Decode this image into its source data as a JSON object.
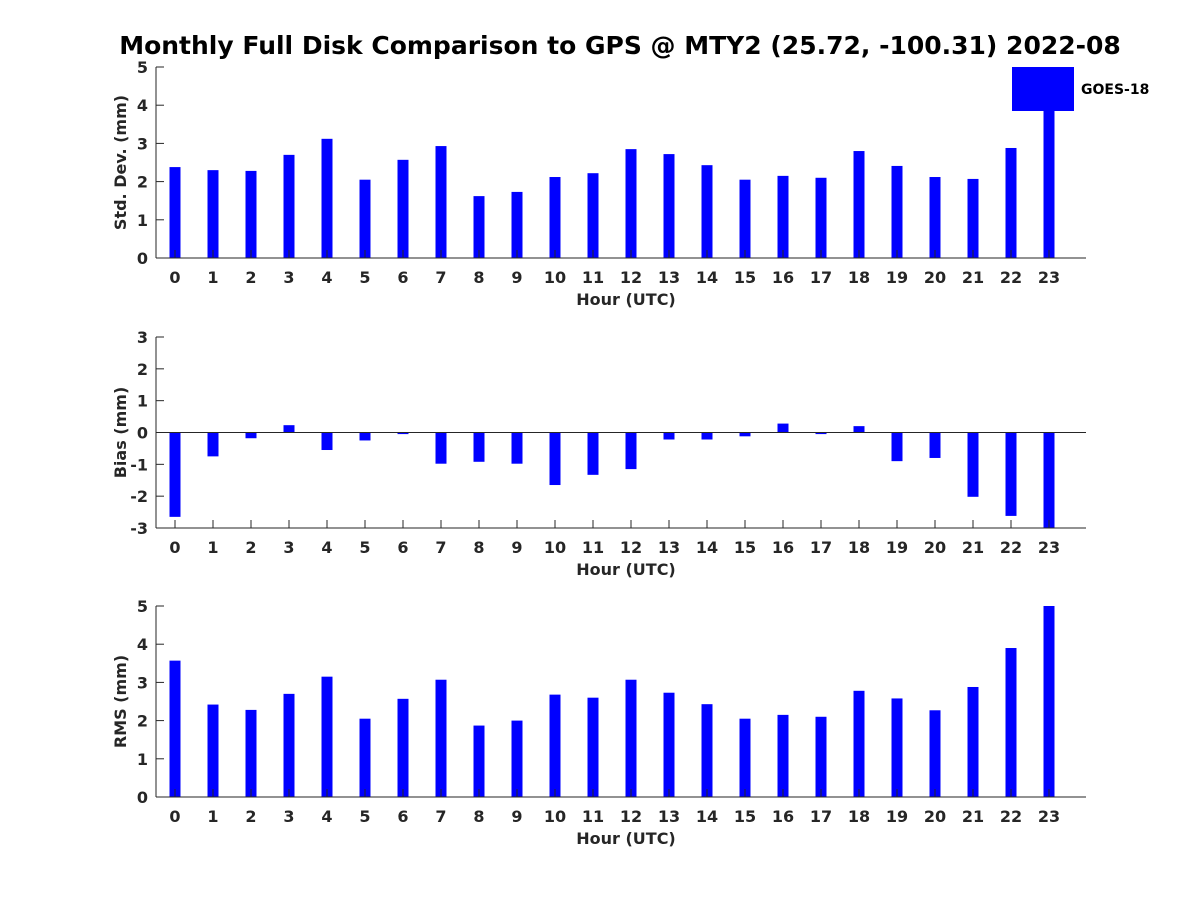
{
  "title": "Monthly Full Disk Comparison to GPS @ MTY2 (25.72, -100.31) 2022-08",
  "legend": {
    "label": "GOES-18",
    "color": "#0000ff",
    "placement": "top-right"
  },
  "chart_data": [
    {
      "type": "bar",
      "ylabel": "Std. Dev. (mm)",
      "xlabel": "Hour (UTC)",
      "ylim": [
        0,
        5
      ],
      "yticks": [
        "0",
        "1",
        "2",
        "3",
        "4",
        "5"
      ],
      "categories": [
        "0",
        "1",
        "2",
        "3",
        "4",
        "5",
        "6",
        "7",
        "8",
        "9",
        "10",
        "11",
        "12",
        "13",
        "14",
        "15",
        "16",
        "17",
        "18",
        "19",
        "20",
        "21",
        "22",
        "23"
      ],
      "series": [
        {
          "name": "GOES-18",
          "values": [
            2.38,
            2.3,
            2.28,
            2.7,
            3.12,
            2.05,
            2.57,
            2.93,
            1.62,
            1.73,
            2.12,
            2.22,
            2.85,
            2.72,
            2.43,
            2.05,
            2.15,
            2.1,
            2.8,
            2.41,
            2.12,
            2.07,
            2.88,
            3.85
          ]
        }
      ]
    },
    {
      "type": "bar",
      "ylabel": "Bias (mm)",
      "xlabel": "Hour (UTC)",
      "ylim": [
        -3,
        3
      ],
      "yticks": [
        "-3",
        "-2",
        "-1",
        "0",
        "1",
        "2",
        "3"
      ],
      "categories": [
        "0",
        "1",
        "2",
        "3",
        "4",
        "5",
        "6",
        "7",
        "8",
        "9",
        "10",
        "11",
        "12",
        "13",
        "14",
        "15",
        "16",
        "17",
        "18",
        "19",
        "20",
        "21",
        "22",
        "23"
      ],
      "series": [
        {
          "name": "GOES-18",
          "values": [
            -2.65,
            -0.75,
            -0.18,
            0.23,
            -0.55,
            -0.25,
            -0.05,
            -0.98,
            -0.92,
            -0.98,
            -1.65,
            -1.33,
            -1.15,
            -0.22,
            -0.22,
            -0.12,
            0.28,
            -0.05,
            0.2,
            -0.9,
            -0.8,
            -2.02,
            -2.62,
            -3.0
          ]
        }
      ]
    },
    {
      "type": "bar",
      "ylabel": "RMS (mm)",
      "xlabel": "Hour (UTC)",
      "ylim": [
        0,
        5
      ],
      "yticks": [
        "0",
        "1",
        "2",
        "3",
        "4",
        "5"
      ],
      "categories": [
        "0",
        "1",
        "2",
        "3",
        "4",
        "5",
        "6",
        "7",
        "8",
        "9",
        "10",
        "11",
        "12",
        "13",
        "14",
        "15",
        "16",
        "17",
        "18",
        "19",
        "20",
        "21",
        "22",
        "23"
      ],
      "series": [
        {
          "name": "GOES-18",
          "values": [
            3.57,
            2.42,
            2.28,
            2.7,
            3.15,
            2.05,
            2.57,
            3.07,
            1.87,
            2.0,
            2.68,
            2.6,
            3.07,
            2.73,
            2.43,
            2.05,
            2.15,
            2.1,
            2.78,
            2.58,
            2.27,
            2.88,
            3.9,
            5.0
          ]
        }
      ]
    }
  ]
}
